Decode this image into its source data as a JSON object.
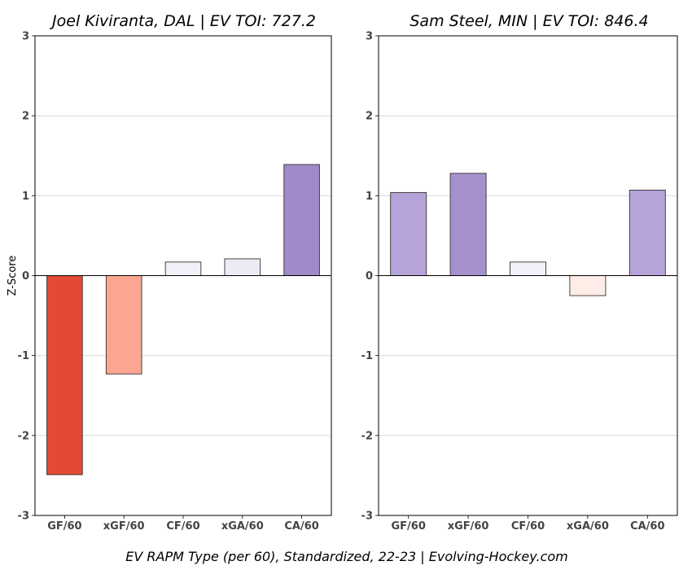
{
  "chart_data": [
    {
      "type": "bar",
      "title": "Joel Kiviranta, DAL  |  EV TOI: 727.2",
      "ylabel": "Z-Score",
      "categories": [
        "GF/60",
        "xGF/60",
        "CF/60",
        "xGA/60",
        "CA/60"
      ],
      "values": [
        -2.49,
        -1.23,
        0.17,
        0.21,
        1.39
      ],
      "colors": [
        "#e24a33",
        "#fca691",
        "#f2eff8",
        "#eeeaf5",
        "#a088c9"
      ],
      "ylim": [
        -3,
        3
      ],
      "yticks": [
        "-3",
        "-2",
        "-1",
        "0",
        "1",
        "2",
        "3"
      ],
      "grid": true
    },
    {
      "type": "bar",
      "title": "Sam Steel, MIN  |  EV TOI: 846.4",
      "ylabel": "",
      "categories": [
        "GF/60",
        "xGF/60",
        "CF/60",
        "xGA/60",
        "CA/60"
      ],
      "values": [
        1.04,
        1.28,
        0.17,
        -0.25,
        1.07
      ],
      "colors": [
        "#b6a3d7",
        "#a690cc",
        "#f2eff8",
        "#feece6",
        "#b6a3d7"
      ],
      "ylim": [
        -3,
        3
      ],
      "yticks": [
        "-3",
        "-2",
        "-1",
        "0",
        "1",
        "2",
        "3"
      ],
      "grid": true
    }
  ],
  "footer": "EV RAPM Type (per 60), Standardized, 22-23    |    Evolving-Hockey.com"
}
